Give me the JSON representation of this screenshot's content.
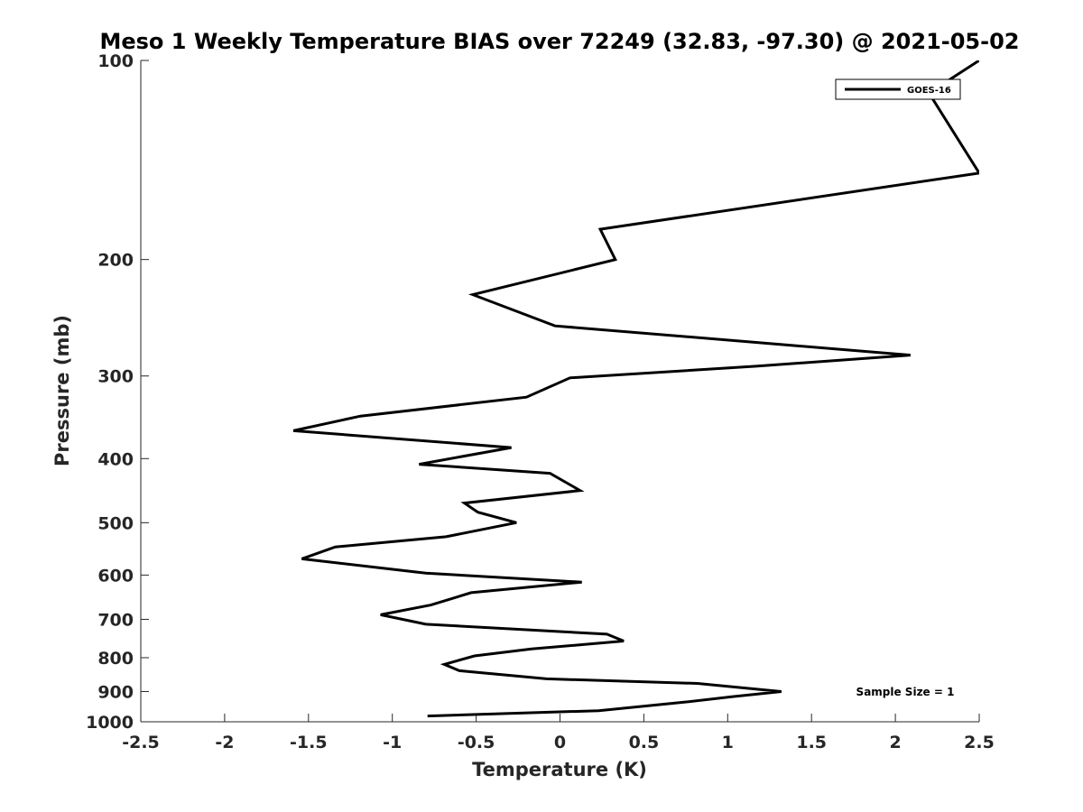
{
  "chart_data": {
    "type": "line",
    "title": "Meso 1 Weekly Temperature BIAS over 72249 (32.83, -97.30) @ 2021-05-02",
    "xlabel": "Temperature (K)",
    "ylabel": "Pressure (mb)",
    "xlim": [
      -2.5,
      2.5
    ],
    "ylim": [
      100,
      1000
    ],
    "y_scale": "log",
    "y_reversed": true,
    "grid": false,
    "x_ticks": [
      -2.5,
      -2,
      -1.5,
      -1,
      -0.5,
      0,
      0.5,
      1,
      1.5,
      2,
      2.5
    ],
    "x_tick_labels": [
      "-2.5",
      "-2",
      "-1.5",
      "-1",
      "-0.5",
      "0",
      "0.5",
      "1",
      "1.5",
      "2",
      "2.5"
    ],
    "y_ticks": [
      100,
      200,
      300,
      400,
      500,
      600,
      700,
      800,
      900,
      1000
    ],
    "y_tick_labels": [
      "100",
      "200",
      "300",
      "400",
      "500",
      "600",
      "700",
      "800",
      "900",
      "1000"
    ],
    "legend": {
      "position": "top-right",
      "entries": [
        "GOES-16"
      ]
    },
    "annotation": "Sample Size = 1",
    "line_color": "#000000",
    "series": [
      {
        "name": "GOES-16",
        "x": [
          2.5,
          2.2,
          2.5,
          0.24,
          0.33,
          -0.52,
          -0.03,
          2.09,
          1.17,
          0.06,
          -0.2,
          -1.19,
          -1.59,
          -0.29,
          -0.84,
          -0.06,
          0.12,
          -0.57,
          -0.49,
          -0.26,
          -0.68,
          -1.34,
          -1.54,
          -0.8,
          0.13,
          -0.53,
          -0.77,
          -1.07,
          -0.8,
          0.28,
          0.38,
          -0.17,
          -0.51,
          -0.69,
          -0.6,
          -0.08,
          0.82,
          1.32,
          1.03,
          0.74,
          0.23,
          -0.79
        ],
        "y": [
          100,
          112,
          148,
          180,
          200,
          226,
          252,
          279,
          290,
          302,
          323,
          345,
          363,
          385,
          408,
          421,
          447,
          467,
          482,
          500,
          525,
          544,
          567,
          596,
          615,
          638,
          666,
          689,
          712,
          737,
          755,
          776,
          795,
          819,
          837,
          861,
          875,
          900,
          916,
          934,
          962,
          980
        ]
      }
    ]
  }
}
